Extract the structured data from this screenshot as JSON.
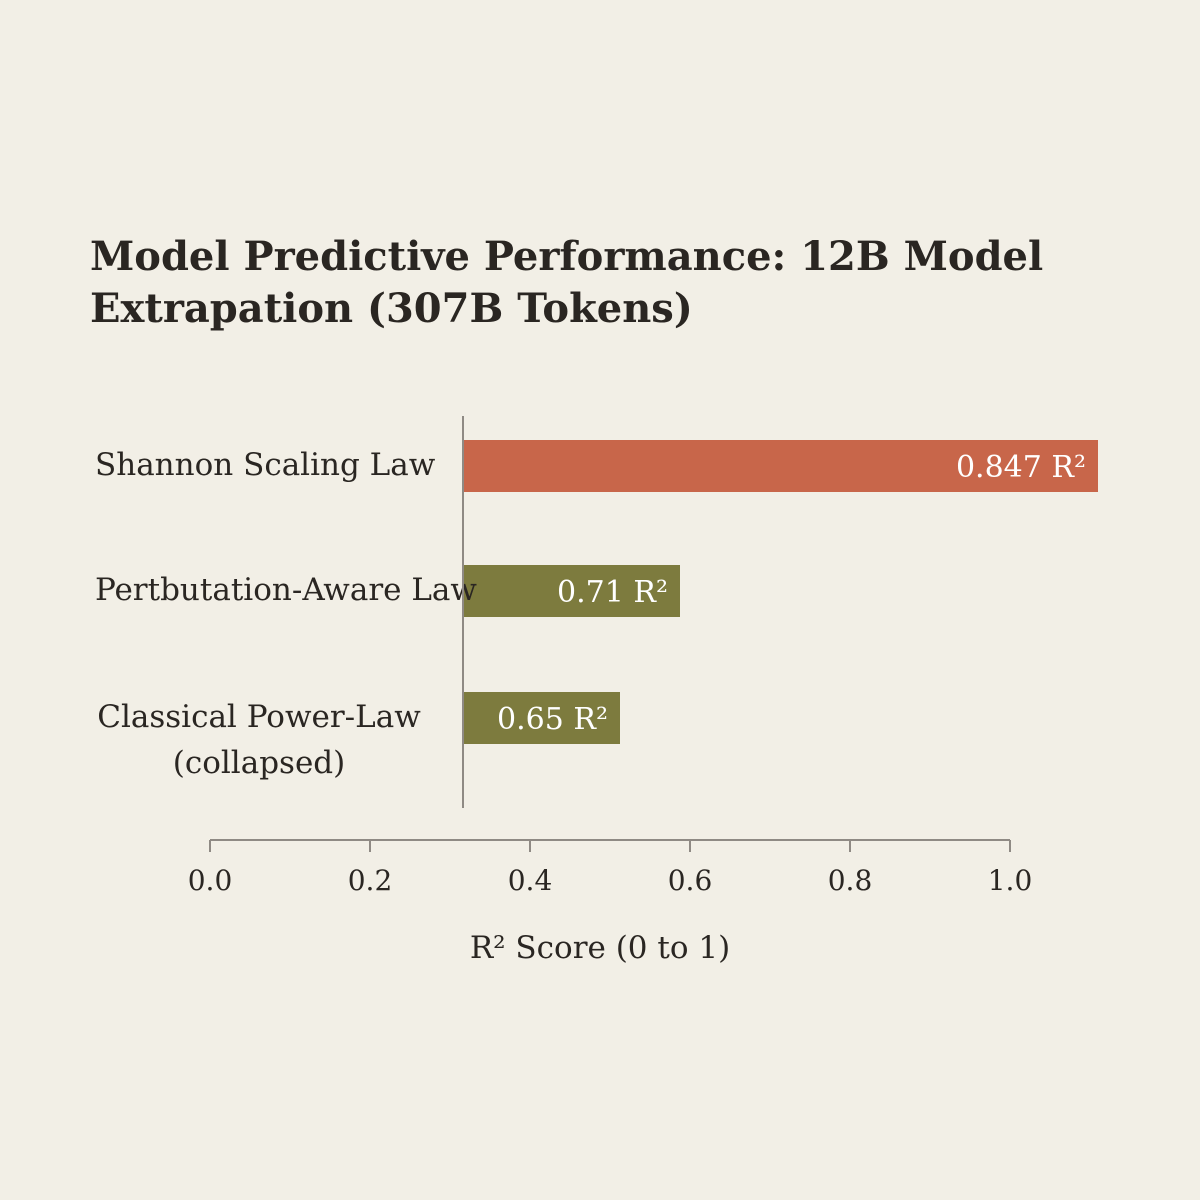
{
  "chart_data": {
    "type": "bar",
    "orientation": "horizontal",
    "title_lines": [
      "Model Predictive Performance: 12B Model",
      "Extrapation (307B Tokens)"
    ],
    "categories": [
      [
        "Shannon Scaling Law"
      ],
      [
        "Pertbutation-Aware Law"
      ],
      [
        "Classical Power-Law",
        "(collapsed)"
      ]
    ],
    "values": [
      0.847,
      0.71,
      0.65
    ],
    "value_labels": [
      "0.847 R²",
      "0.71 R²",
      "0.65 R²"
    ],
    "colors": [
      "#c8664a",
      "#7d7b3e",
      "#7d7b3e"
    ],
    "xlabel": "R² Score (0 to 1)",
    "xlim": [
      0.0,
      1.0
    ],
    "xticks": [
      "0.0",
      "0.2",
      "0.4",
      "0.6",
      "0.8",
      "1.0"
    ],
    "grid": false,
    "legend": "none"
  }
}
